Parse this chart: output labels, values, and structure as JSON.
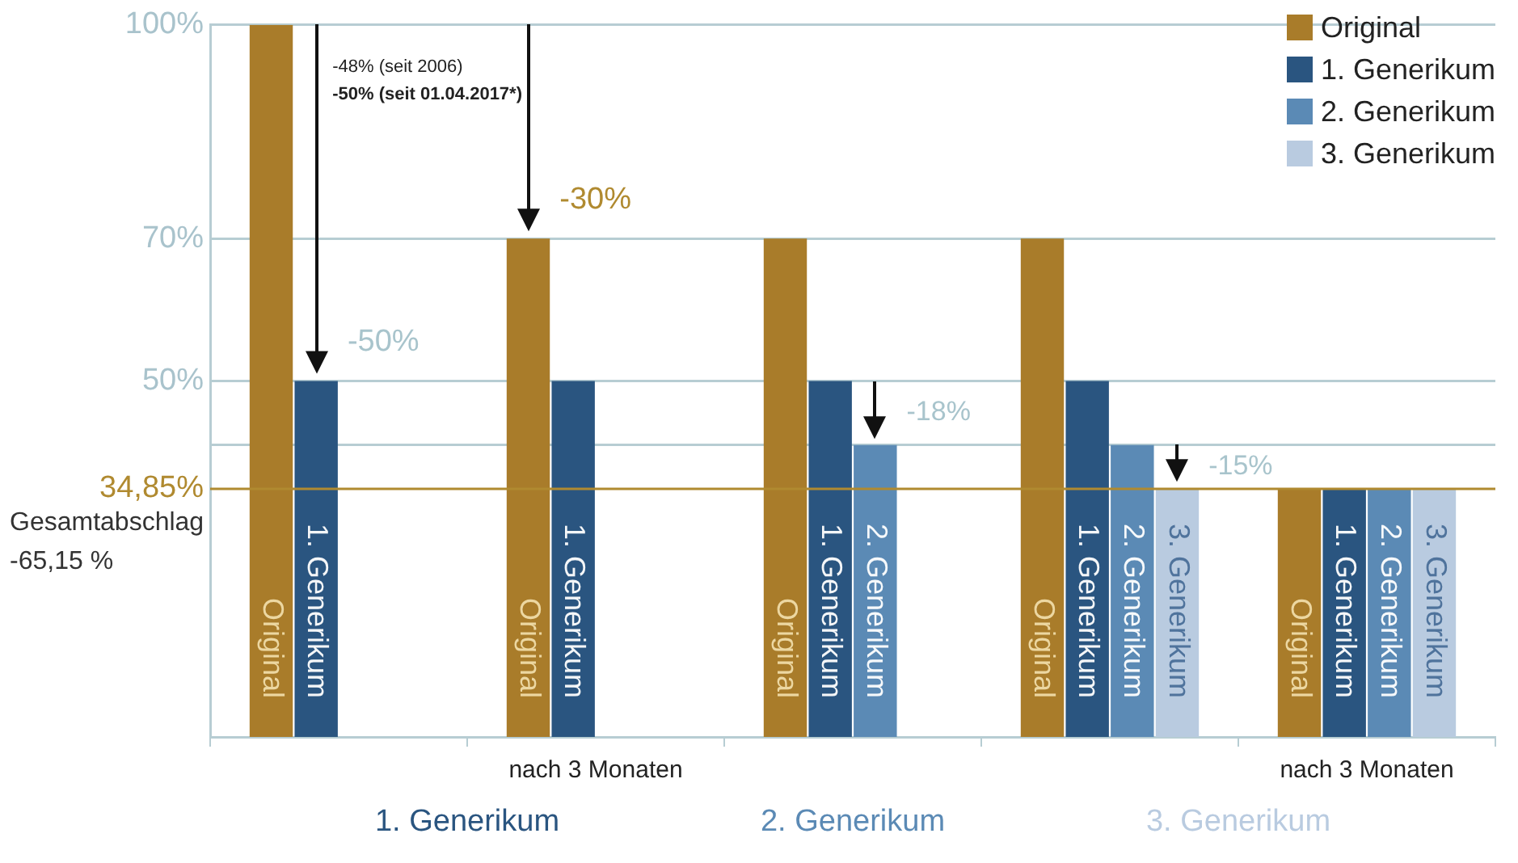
{
  "chart_data": {
    "type": "bar",
    "categories": [
      null,
      "nach 3 Monaten",
      null,
      null,
      "nach 3 Monaten"
    ],
    "series": [
      {
        "name": "Original",
        "color": "#a97c2a",
        "values": [
          100,
          70,
          70,
          70,
          34.85
        ]
      },
      {
        "name": "1. Generikum",
        "color": "#2a5580",
        "values": [
          50,
          50,
          50,
          50,
          34.85
        ]
      },
      {
        "name": "2. Generikum",
        "color": "#5b8ab5",
        "values": [
          null,
          null,
          41,
          41,
          34.85
        ]
      },
      {
        "name": "3. Generikum",
        "color": "#b9cbe0",
        "values": [
          null,
          null,
          null,
          34.85,
          34.85
        ]
      }
    ],
    "ylim": [
      0,
      100
    ],
    "yticks": [
      {
        "value": 41,
        "label": null
      },
      {
        "value": 50,
        "label": "50%"
      },
      {
        "value": 70,
        "label": "70%"
      },
      {
        "value": 100,
        "label": "100%"
      }
    ],
    "ref_lines": [
      {
        "axis": "y",
        "value": 34.85,
        "label": "34,85%",
        "color": "#b08a30"
      }
    ],
    "grid": "y",
    "legend": "top right",
    "annotations": [
      "-48% (seit 2006)",
      "-50% (seit 01.04.2017*)",
      "-50%",
      "-30%",
      "-18%",
      "-15%",
      "Gesamtabschlag\n-65,15 %",
      "1. Generikum",
      "2. Generikum",
      "3. Generikum"
    ]
  }
}
